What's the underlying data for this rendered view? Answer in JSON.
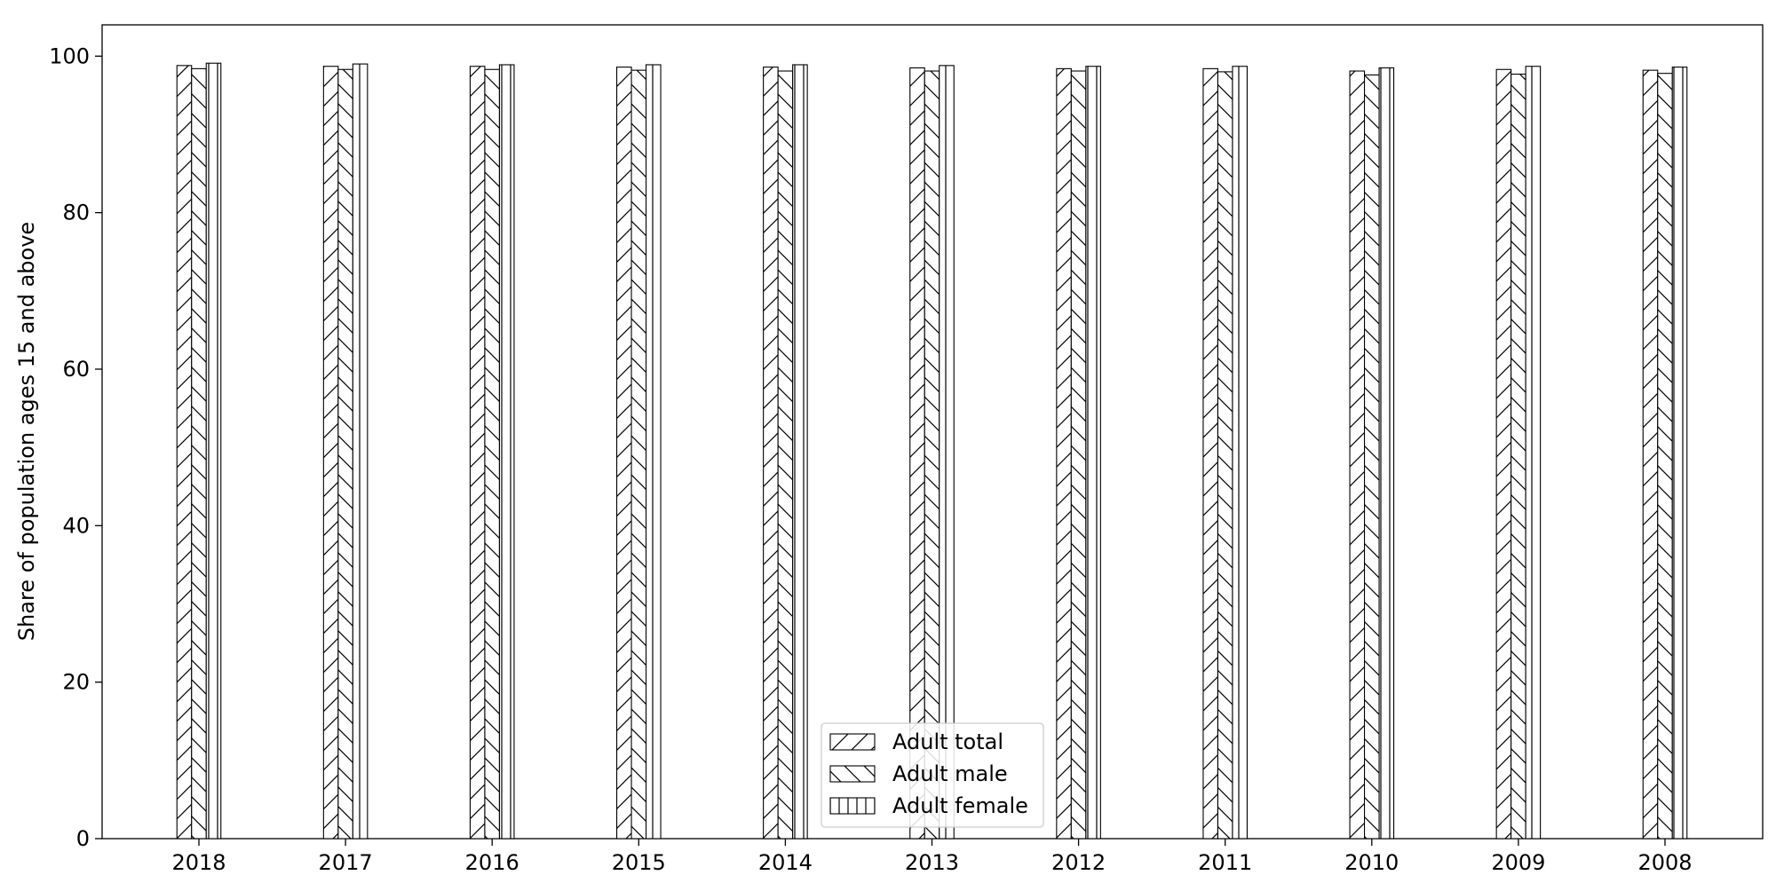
{
  "chart_data": {
    "type": "bar",
    "title": "",
    "xlabel": "",
    "ylabel": "Share of population ages 15 and above",
    "ylim": [
      0,
      104
    ],
    "yticks": [
      0,
      20,
      40,
      60,
      80,
      100
    ],
    "grid": false,
    "legend_position": "bottom-center",
    "categories": [
      "2018",
      "2017",
      "2016",
      "2015",
      "2014",
      "2013",
      "2012",
      "2011",
      "2010",
      "2009",
      "2008"
    ],
    "series": [
      {
        "name": "Adult total",
        "pattern": "diagonal-forward",
        "values": [
          98.8,
          98.7,
          98.7,
          98.6,
          98.6,
          98.5,
          98.4,
          98.4,
          98.1,
          98.3,
          98.2
        ]
      },
      {
        "name": "Adult male",
        "pattern": "diagonal-backward",
        "values": [
          98.4,
          98.3,
          98.3,
          98.2,
          98.1,
          98.1,
          98.1,
          98.0,
          97.6,
          97.7,
          97.8
        ]
      },
      {
        "name": "Adult female",
        "pattern": "vertical-lines",
        "values": [
          99.1,
          99.0,
          98.9,
          98.9,
          98.9,
          98.8,
          98.7,
          98.7,
          98.5,
          98.7,
          98.6
        ]
      }
    ],
    "colors": {
      "bar_fill": "#ffffff",
      "stroke": "#000000"
    }
  }
}
